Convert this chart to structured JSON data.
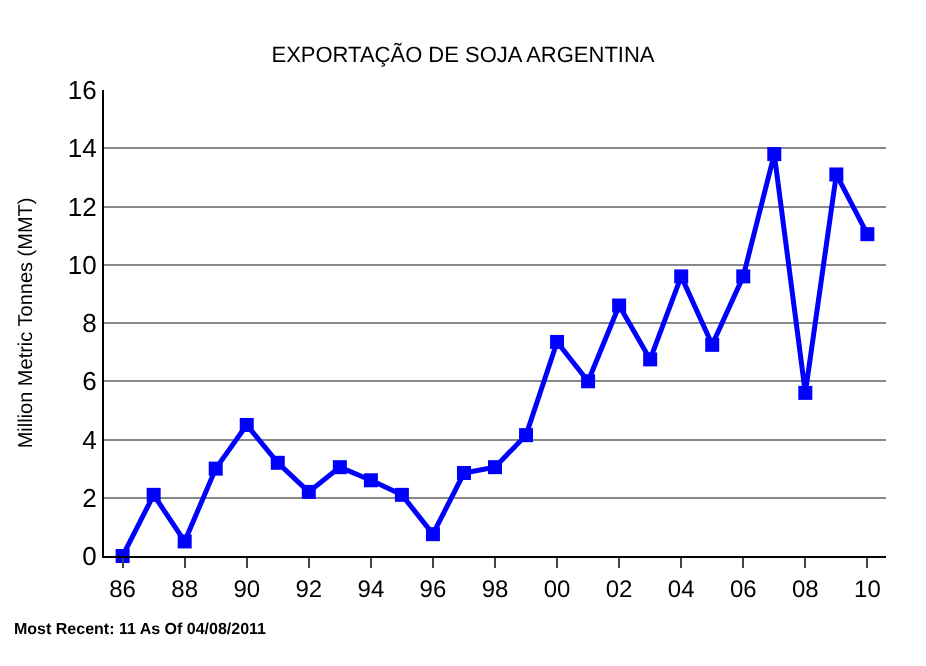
{
  "chart_data": {
    "type": "line",
    "title": "EXPORTAÇÃO DE SOJA ARGENTINA",
    "ylabel": "Million Metric Tonnes (MMT)",
    "categories": [
      "86",
      null,
      "88",
      null,
      "90",
      null,
      "92",
      null,
      "94",
      null,
      "96",
      null,
      "98",
      null,
      "00",
      null,
      "02",
      null,
      "04",
      null,
      "06",
      null,
      "08",
      null,
      "10"
    ],
    "series": [
      {
        "color": "#0000ff",
        "values": [
          0,
          2.1,
          0.5,
          3.0,
          4.5,
          3.2,
          2.2,
          3.05,
          2.6,
          2.1,
          0.75,
          2.85,
          3.05,
          4.15,
          7.35,
          6.0,
          8.6,
          6.75,
          9.6,
          7.25,
          9.6,
          13.8,
          5.6,
          13.1,
          11.05
        ]
      }
    ],
    "ylim": [
      0,
      16
    ],
    "yticks": [
      0,
      2,
      4,
      6,
      8,
      10,
      12,
      14,
      16
    ],
    "grid": "y",
    "marker": "square",
    "line_style": "solid",
    "annotations": [
      "Most Recent: 11 As Of 04/08/2011"
    ]
  }
}
